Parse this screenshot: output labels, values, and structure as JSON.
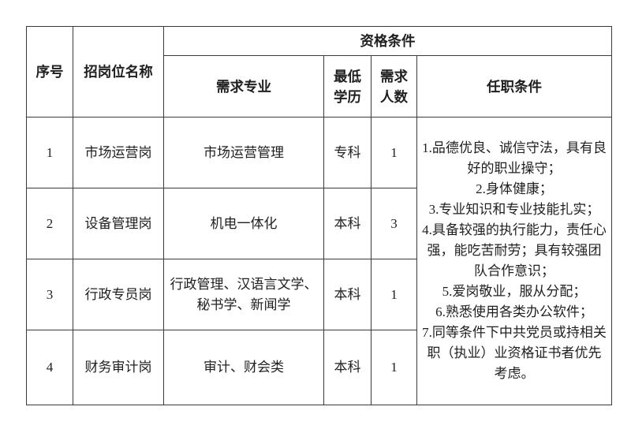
{
  "table": {
    "headers": {
      "no": "序号",
      "position": "招岗位名称",
      "qualification": "资格条件",
      "major": "需求专业",
      "min_education": "最低学历",
      "headcount": "需求人数",
      "requirements": "任职条件"
    },
    "rows": [
      {
        "no": "1",
        "position": "市场运营岗",
        "major": "市场运营管理",
        "education": "专科",
        "count": "1"
      },
      {
        "no": "2",
        "position": "设备管理岗",
        "major": "机电一体化",
        "education": "本科",
        "count": "3"
      },
      {
        "no": "3",
        "position": "行政专员岗",
        "major": "行政管理、汉语言文学、秘书学、新闻学",
        "education": "本科",
        "count": "1"
      },
      {
        "no": "4",
        "position": "财务审计岗",
        "major": "审计、财会类",
        "education": "本科",
        "count": "1"
      }
    ],
    "requirements_items": [
      "1.品德优良、诚信守法，具有良好的职业操守；",
      "2.身体健康；",
      "3.专业知识和专业技能扎实；",
      "4.具备较强的执行能力，责任心强，能吃苦耐劳；具有较强团队合作意识；",
      "5.爱岗敬业，服从分配；",
      "6.熟悉使用各类办公软件；",
      "7.同等条件下中共党员或持相关职（执业）业资格证书者优先考虑。"
    ]
  },
  "colors": {
    "border": "#3b3b3b",
    "text": "#1f1f1f",
    "background": "#ffffff"
  }
}
